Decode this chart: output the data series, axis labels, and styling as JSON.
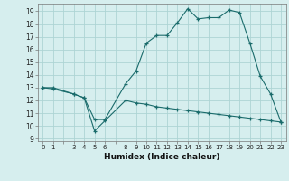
{
  "title": "",
  "xlabel": "Humidex (Indice chaleur)",
  "bg_color": "#d6eeee",
  "grid_color": "#aed4d4",
  "line_color": "#1a6b6b",
  "xlim": [
    -0.5,
    23.5
  ],
  "ylim": [
    8.8,
    19.6
  ],
  "yticks": [
    9,
    10,
    11,
    12,
    13,
    14,
    15,
    16,
    17,
    18,
    19
  ],
  "xticks": [
    0,
    1,
    3,
    4,
    5,
    6,
    8,
    9,
    10,
    11,
    12,
    13,
    14,
    15,
    16,
    17,
    18,
    19,
    20,
    21,
    22,
    23
  ],
  "line1_x": [
    0,
    1,
    3,
    4,
    5,
    6,
    8,
    9,
    10,
    11,
    12,
    13,
    14,
    15,
    16,
    17,
    18,
    19,
    20,
    21,
    22,
    23
  ],
  "line1_y": [
    13,
    13,
    12.5,
    12.2,
    10.5,
    10.5,
    13.3,
    14.3,
    16.5,
    17.1,
    17.1,
    18.1,
    19.2,
    18.4,
    18.5,
    18.5,
    19.1,
    18.9,
    16.5,
    13.9,
    12.5,
    10.3
  ],
  "line2_x": [
    0,
    1,
    3,
    4,
    5,
    6,
    8,
    9,
    10,
    11,
    12,
    13,
    14,
    15,
    16,
    17,
    18,
    19,
    20,
    21,
    22,
    23
  ],
  "line2_y": [
    13,
    12.9,
    12.5,
    12.2,
    9.6,
    10.4,
    12.0,
    11.8,
    11.7,
    11.5,
    11.4,
    11.3,
    11.2,
    11.1,
    11.0,
    10.9,
    10.8,
    10.7,
    10.6,
    10.5,
    10.4,
    10.3
  ]
}
